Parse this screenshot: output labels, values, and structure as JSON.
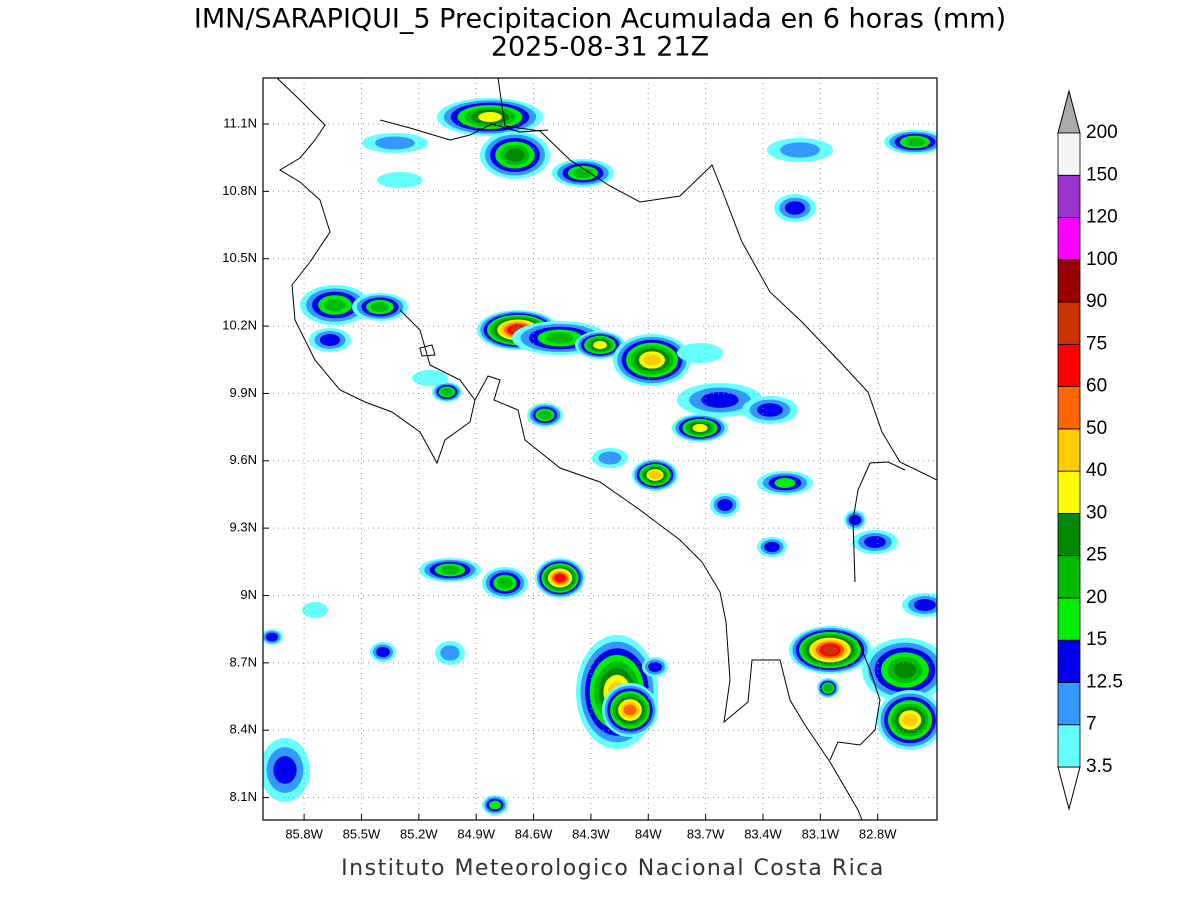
{
  "title": "IMN/SARAPIQUI_5 Precipitacion Acumulada en 6 horas (mm)",
  "subtitle": "2025-08-31 21Z",
  "map": {
    "lonlim": [
      -86.015,
      -82.49
    ],
    "latlim": [
      8.0,
      11.305
    ],
    "xticks": [
      {
        "value": -85.8,
        "label": "85.8W"
      },
      {
        "value": -85.5,
        "label": "85.5W"
      },
      {
        "value": -85.2,
        "label": "85.2W"
      },
      {
        "value": -84.9,
        "label": "84.9W"
      },
      {
        "value": -84.6,
        "label": "84.6W"
      },
      {
        "value": -84.3,
        "label": "84.3W"
      },
      {
        "value": -84.0,
        "label": "84W"
      },
      {
        "value": -83.7,
        "label": "83.7W"
      },
      {
        "value": -83.4,
        "label": "83.4W"
      },
      {
        "value": -83.1,
        "label": "83.1W"
      },
      {
        "value": -82.8,
        "label": "82.8W"
      }
    ],
    "yticks": [
      {
        "value": 11.1,
        "label": "11.1N"
      },
      {
        "value": 10.8,
        "label": "10.8N"
      },
      {
        "value": 10.5,
        "label": "10.5N"
      },
      {
        "value": 10.2,
        "label": "10.2N"
      },
      {
        "value": 9.9,
        "label": "9.9N"
      },
      {
        "value": 9.6,
        "label": "9.6N"
      },
      {
        "value": 9.3,
        "label": "9.3N"
      },
      {
        "value": 9.0,
        "label": "9N"
      },
      {
        "value": 8.7,
        "label": "8.7N"
      },
      {
        "value": 8.4,
        "label": "8.4N"
      },
      {
        "value": 8.1,
        "label": "8.1N"
      }
    ],
    "grid": true
  },
  "colorbar": {
    "levels": [
      3.5,
      7,
      12.5,
      15,
      20,
      25,
      30,
      40,
      50,
      60,
      75,
      90,
      100,
      120,
      150,
      200
    ],
    "colors": [
      "#66ffff",
      "#3399ff",
      "#0000ee",
      "#00ee00",
      "#00bb00",
      "#008800",
      "#ffff00",
      "#ffcc00",
      "#ff6600",
      "#ff0000",
      "#cc3300",
      "#990000",
      "#ff00ff",
      "#9933cc",
      "#f5f5f5"
    ],
    "below_color": "#ffffff",
    "above_color": "#aaaaaa"
  },
  "footer": "Instituto Meteorologico Nacional Costa Rica"
}
